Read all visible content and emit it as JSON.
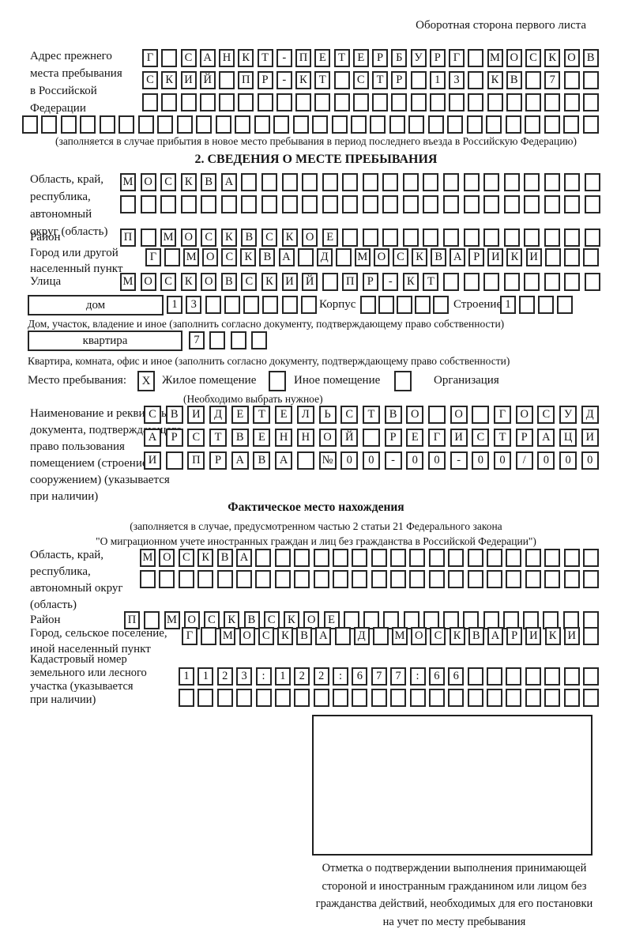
{
  "header": {
    "title": "Оборотная сторона первого листа"
  },
  "prev_address": {
    "label_lines": [
      "Адрес прежнего",
      "места пребывания",
      "в Российской",
      "Федерации"
    ],
    "row1": "Г_САНКТ-ПЕТЕРБУРГ_МОСКОВ",
    "row2": "СКИЙ_ПР-КТ_СТР_13_КВ_7__",
    "row3": "________________________",
    "row4": "______________________________",
    "note": "(заполняется в случае прибытия в новое место пребывания в период последнего въезда в Российскую Федерацию)"
  },
  "section2": {
    "title": "2. СВЕДЕНИЯ О МЕСТЕ ПРЕБЫВАНИЯ",
    "oblast": {
      "label_lines": [
        "Область, край,",
        "республика,",
        "автономный",
        "округ (область)"
      ],
      "row1": "МОСКВА__________________",
      "row2": "________________________"
    },
    "raion": {
      "label": "Район",
      "row": "П_МОСКВСКОЕ_____________"
    },
    "gorod": {
      "label_lines": [
        "Город или другой",
        "населенный пункт"
      ],
      "row": "Г_МОСКВА_Д_МОСКВАРИКИ___"
    },
    "ulitsa": {
      "label": "Улица",
      "row": "МОСКОВСКИЙ_ПР-КТ________"
    },
    "dom": {
      "box_label": "дом",
      "cells": "13______",
      "korpus_label": "Корпус",
      "korpus_cells": "_____",
      "stroenie_label": "Строение",
      "stroenie_cells": "1___",
      "note": "Дом, участок, владение и иное (заполнить согласно документу, подтверждающему право собственности)"
    },
    "kvartira": {
      "box_label": "квартира",
      "cells": "7___",
      "note": "Квартира, комната, офис и иное (заполнить согласно документу, подтверждающему право собственности)"
    },
    "mesto": {
      "label": "Место пребывания:",
      "options": [
        {
          "label": "Жилое помещение",
          "mark": "X"
        },
        {
          "label": "Иное помещение",
          "mark": ""
        },
        {
          "label": "Организация",
          "mark": ""
        }
      ],
      "note": "(Необходимо выбрать нужное)"
    },
    "doc": {
      "label_lines": [
        "Наименование и реквизиты",
        "документа, подтверждающего",
        "право пользования",
        "помещением (строением,",
        "сооружением) (указывается",
        "при наличии)"
      ],
      "row1": "СВИДЕТЕЛЬСТВО_О_ГОСУД",
      "row2": "АРСТВЕННОЙ_РЕГИСТРАЦИ",
      "row3": "И_ПРАВА_№00-00-00/000"
    }
  },
  "fact": {
    "title": "Фактическое место нахождения",
    "note_lines": [
      "(заполняется в случае, предусмотренном частью 2 статьи 21 Федерального закона",
      "\"О миграционном учете иностранных граждан и лиц без гражданства в Российской Федерации\")"
    ],
    "oblast": {
      "label_lines": [
        "Область, край,",
        "республика,",
        "автономный округ",
        "(область)"
      ],
      "row1": "МОСКВА__________________",
      "row2": "________________________"
    },
    "raion": {
      "label": "Район",
      "row": "П_МОСКВСКОЕ_____________"
    },
    "gorod": {
      "label_lines": [
        "Город, сельское поселение,",
        "иной населенный пункт"
      ],
      "row": "Г_МОСКВА_Д_МОСКВАРИКИ_"
    },
    "kadastr": {
      "label_lines": [
        "Кадастровый номер",
        "земельного или лесного",
        "участка (указывается",
        "при наличии)"
      ],
      "row1": "1123:122:677:66_______",
      "row2": "______________________"
    },
    "stamp_caption_lines": [
      "Отметка о подтверждении выполнения принимающей",
      "стороной и иностранным гражданином или лицом без",
      "гражданства действий, необходимых для его постановки",
      "на учет по месту пребывания"
    ]
  }
}
